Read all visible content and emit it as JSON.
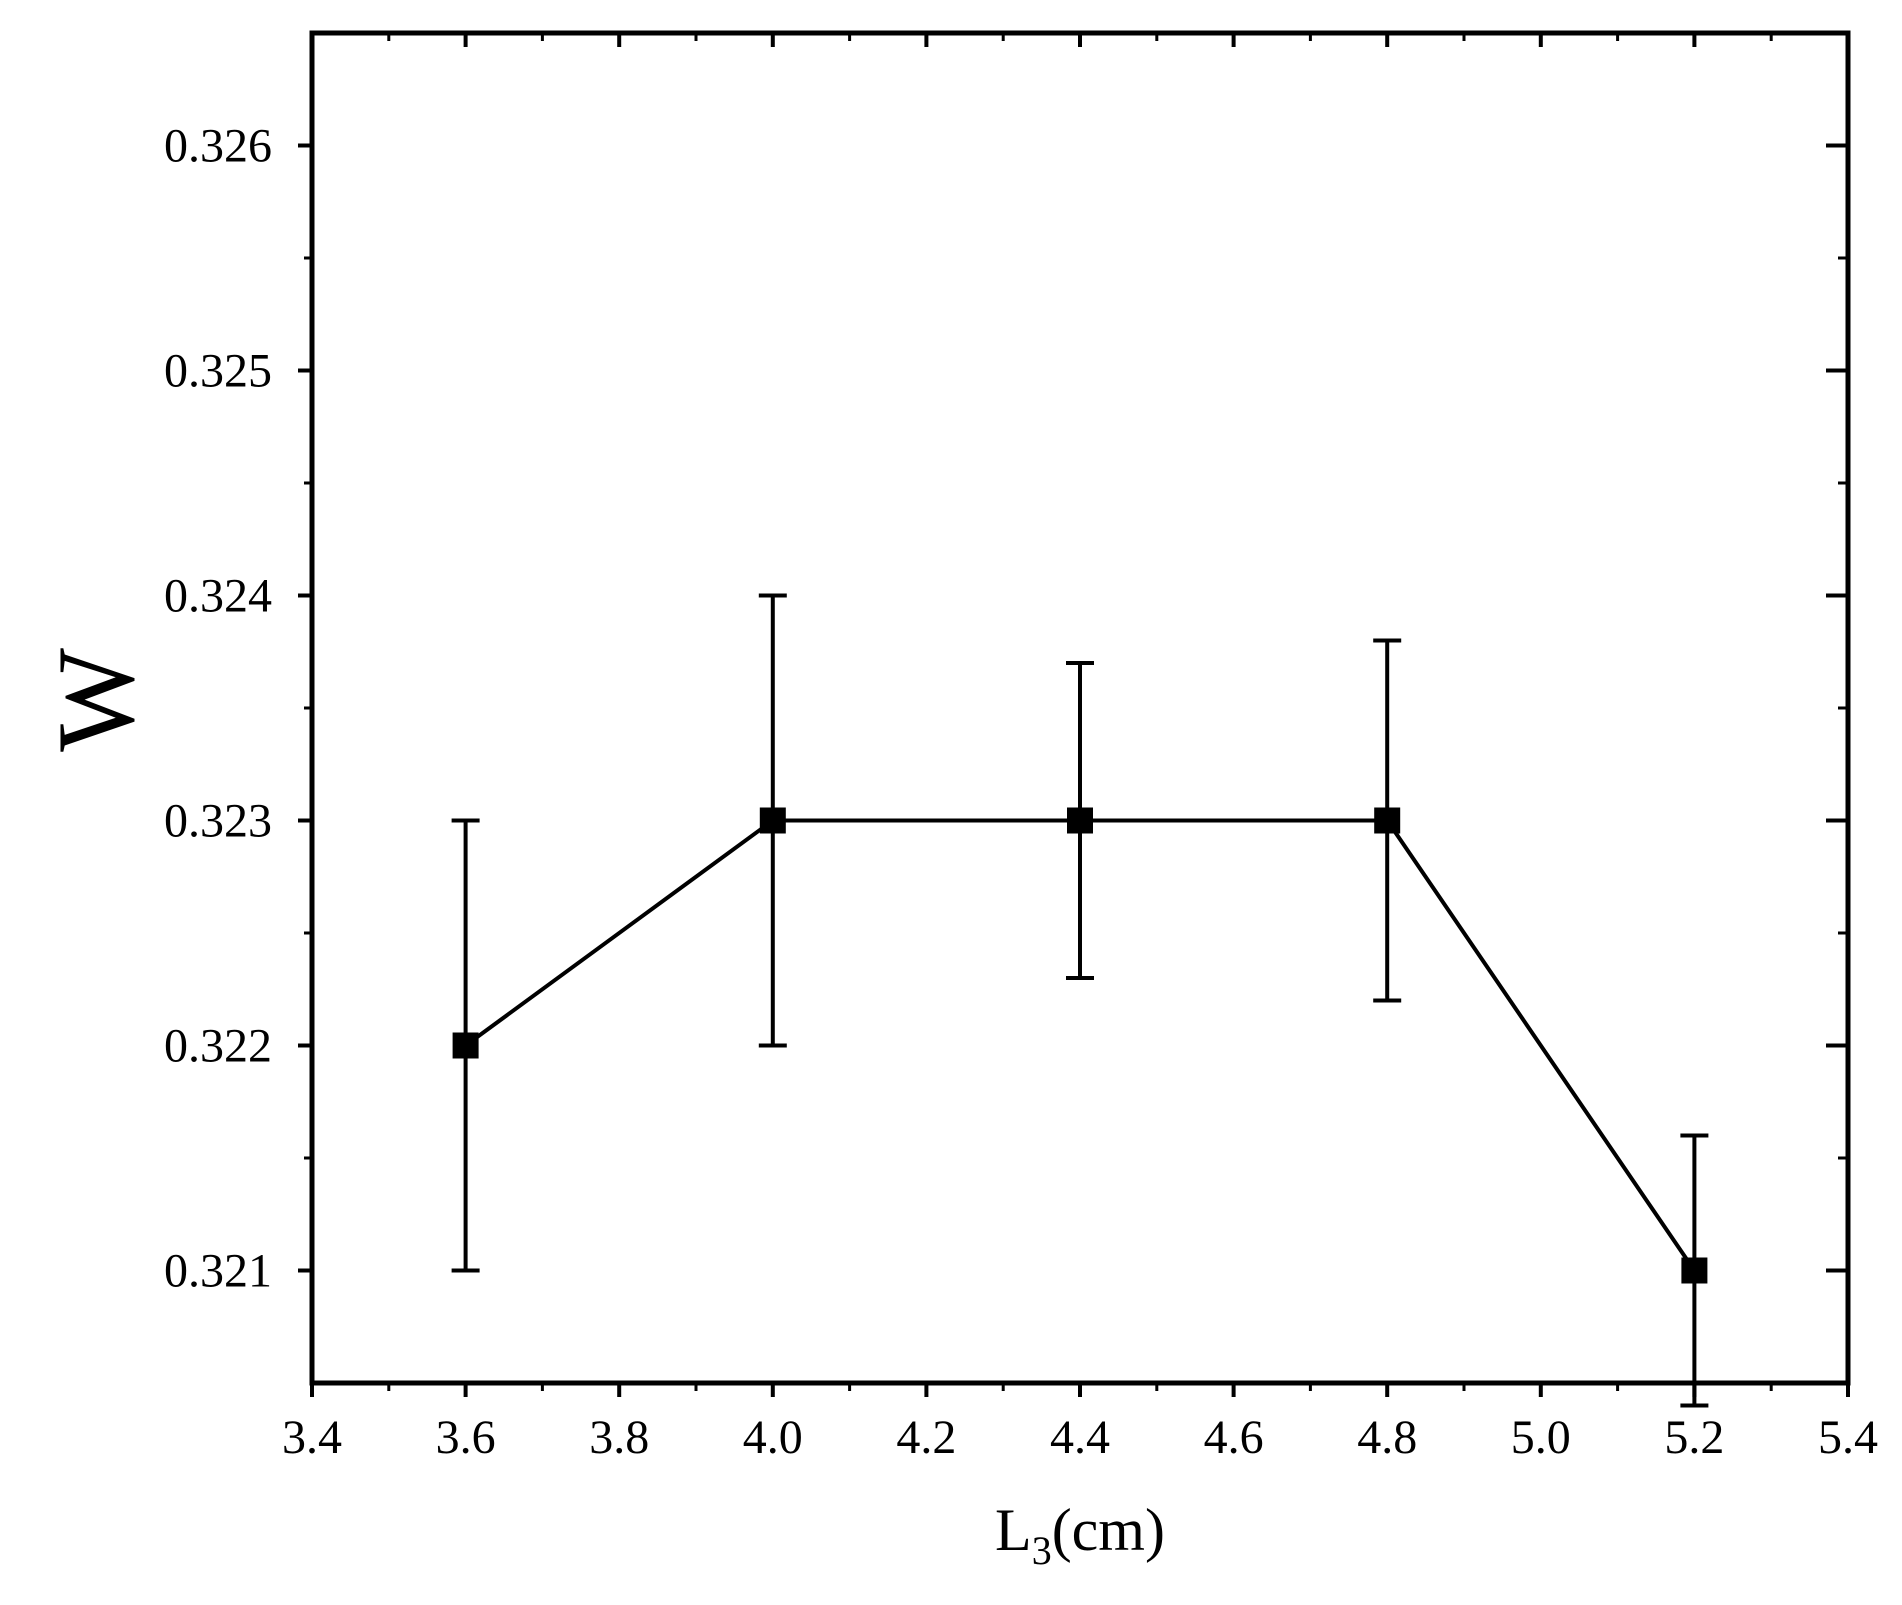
{
  "chart_data": {
    "type": "line",
    "title": "",
    "xlabel_main": "L",
    "xlabel_sub": "3",
    "xlabel_unit": "(cm)",
    "ylabel": "W",
    "xlim": [
      3.4,
      5.4
    ],
    "ylim": [
      0.3205,
      0.3265
    ],
    "x_ticks": [
      3.4,
      3.6,
      3.8,
      4.0,
      4.2,
      4.4,
      4.6,
      4.8,
      5.0,
      5.2,
      5.4
    ],
    "x_tick_labels": [
      "3.4",
      "3.6",
      "3.8",
      "4.0",
      "4.2",
      "4.4",
      "4.6",
      "4.8",
      "5.0",
      "5.2",
      "5.4"
    ],
    "y_ticks": [
      0.321,
      0.322,
      0.323,
      0.324,
      0.325,
      0.326
    ],
    "y_tick_labels": [
      "0.321",
      "0.322",
      "0.323",
      "0.324",
      "0.325",
      "0.326"
    ],
    "grid": false,
    "legend": "none",
    "series": [
      {
        "x": [
          3.6,
          4.0,
          4.4,
          4.8,
          5.2
        ],
        "y": [
          0.322,
          0.323,
          0.323,
          0.323,
          0.321
        ],
        "err_low": [
          0.321,
          0.322,
          0.3223,
          0.3222,
          0.3204
        ],
        "err_high": [
          0.323,
          0.324,
          0.3237,
          0.3238,
          0.3216
        ],
        "color": "#000000",
        "marker": "square"
      }
    ]
  }
}
